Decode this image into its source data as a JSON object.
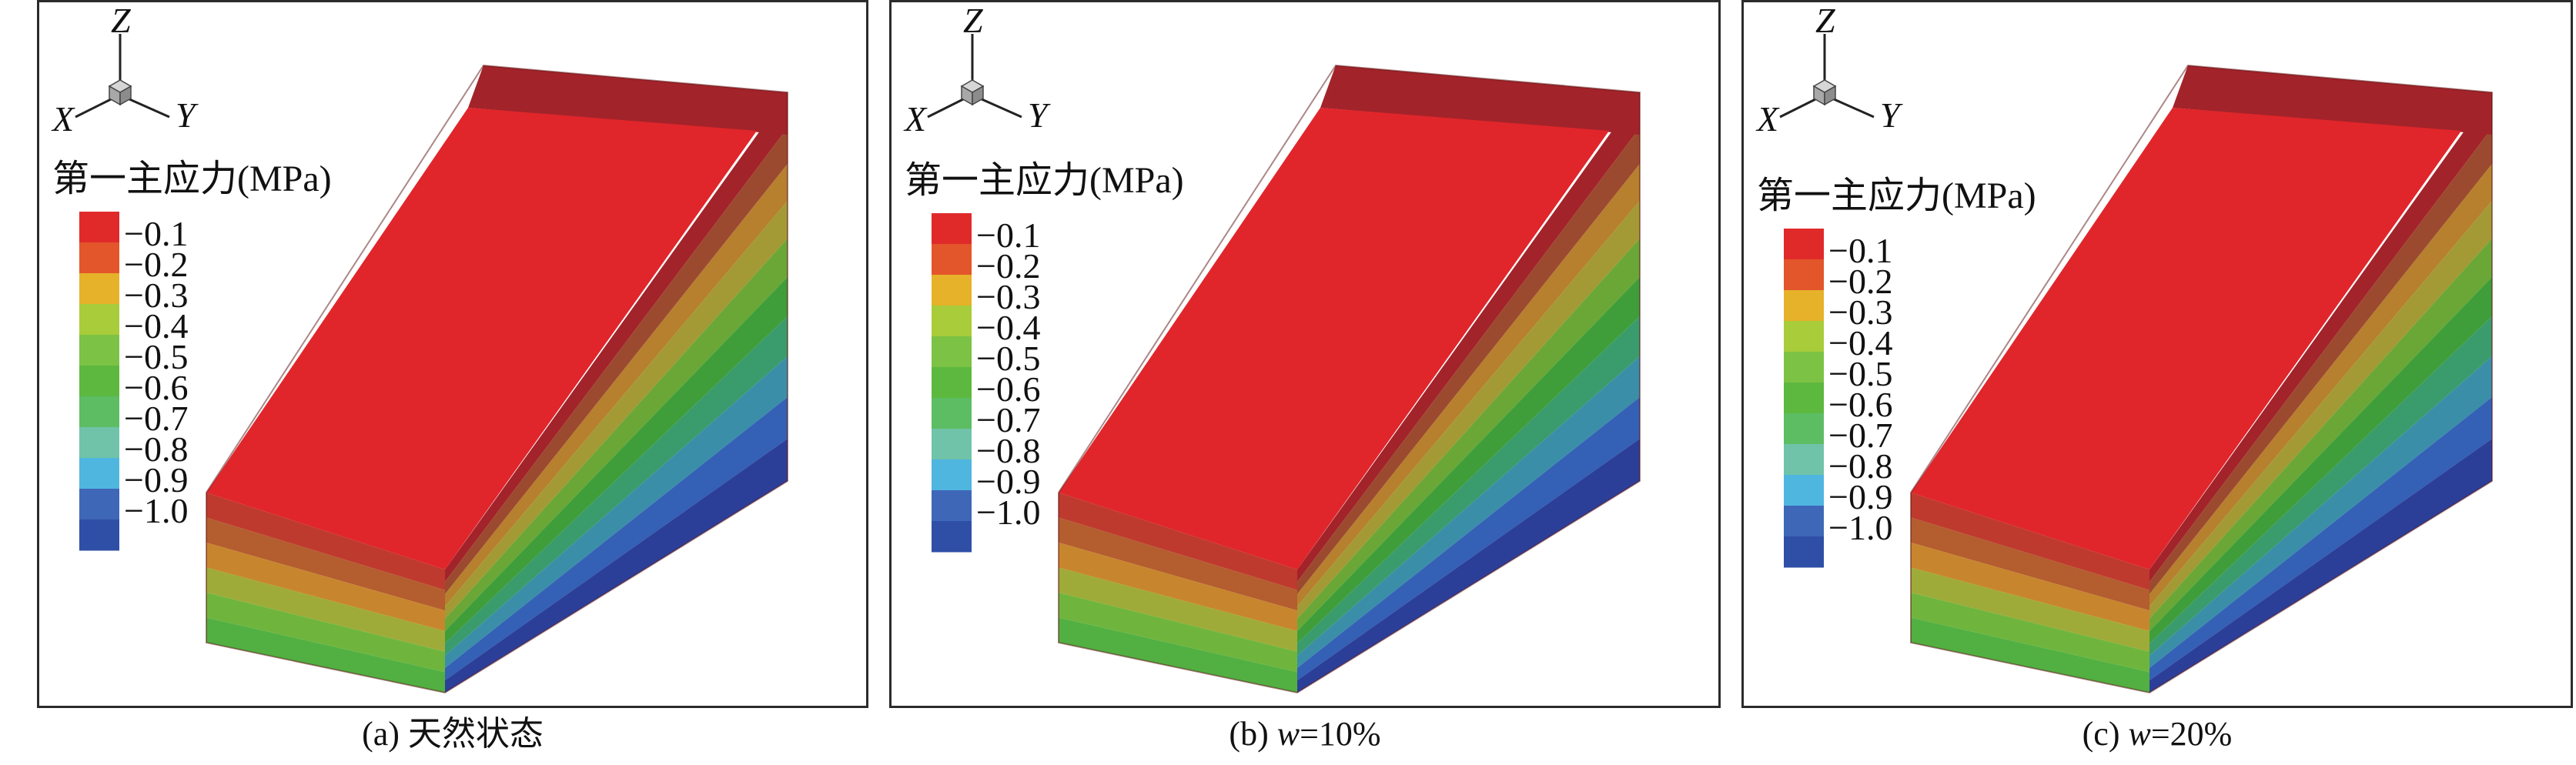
{
  "panels": [
    {
      "id": "a",
      "caption_prefix": "(a) ",
      "caption_var": "",
      "caption_rest": "天然状态"
    },
    {
      "id": "b",
      "caption_prefix": "(b) ",
      "caption_var": "w",
      "caption_rest": "=10%"
    },
    {
      "id": "c",
      "caption_prefix": "(c) ",
      "caption_var": "w",
      "caption_rest": "=20%"
    }
  ],
  "axes": {
    "z": "Z",
    "x": "X",
    "y": "Y"
  },
  "legend": {
    "title": "第一主应力(MPa)",
    "ticks": [
      "−0.1",
      "−0.2",
      "−0.3",
      "−0.4",
      "−0.5",
      "−0.6",
      "−0.7",
      "−0.8",
      "−0.9",
      "−1.0"
    ],
    "colors": [
      "#e02a2a",
      "#e3552b",
      "#e6b22a",
      "#a8cc3a",
      "#7cc244",
      "#5db83f",
      "#5cbd63",
      "#70c3a8",
      "#4fb6e0",
      "#3f67b8",
      "#2f4ea6"
    ]
  },
  "model_colors": {
    "top_face": "#e0262b",
    "top_shadow": "#a3232a",
    "front_face_bands": [
      "#bf3a2e",
      "#b45d2f",
      "#c7862e",
      "#9fab38",
      "#6fb53d",
      "#52b042"
    ],
    "slope_bands": [
      "#a3232a",
      "#9c4a2f",
      "#b6802f",
      "#a39a35",
      "#6aa737",
      "#3f9e3a",
      "#3a9c6c",
      "#3b8ea8",
      "#3460b5",
      "#2c3f98"
    ]
  }
}
